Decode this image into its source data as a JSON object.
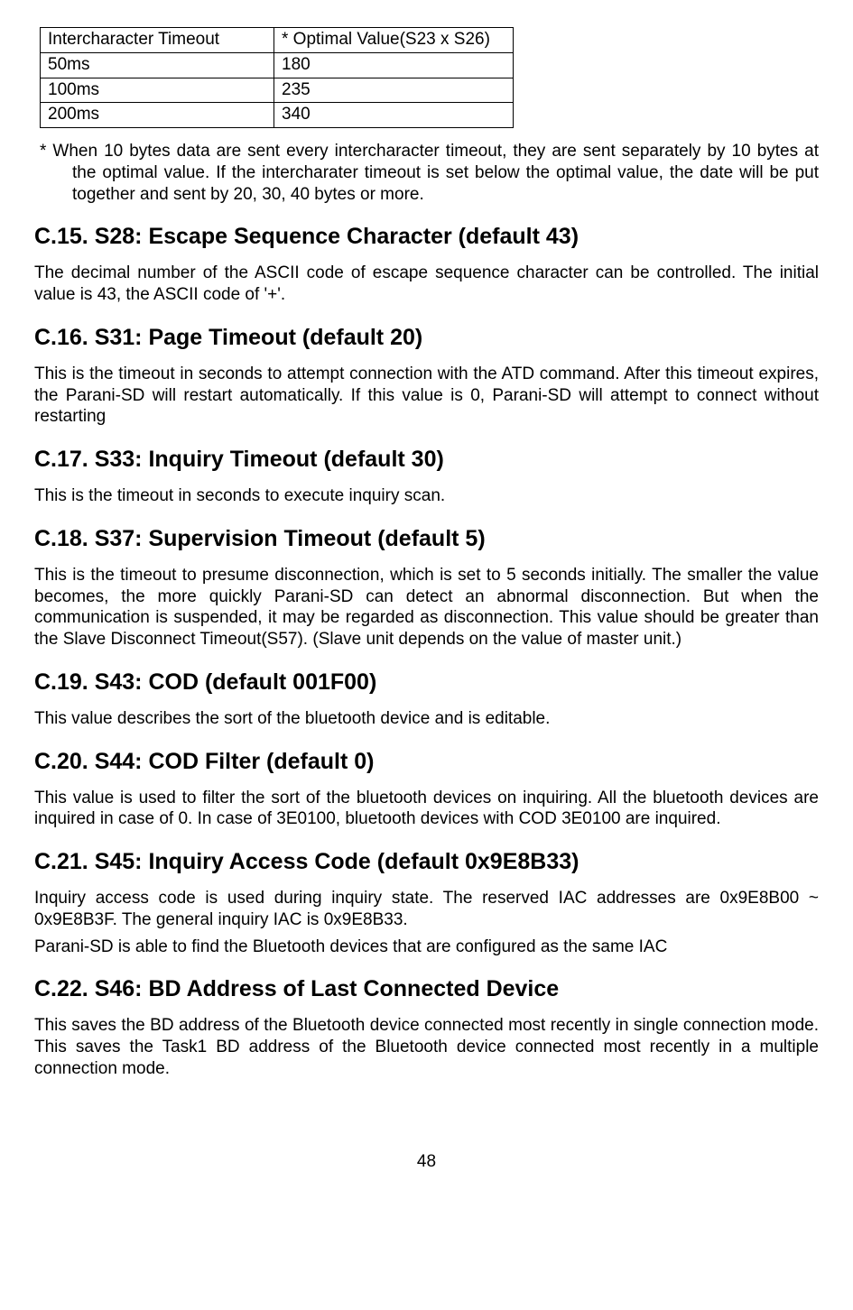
{
  "table": {
    "columns": [
      "Intercharacter Timeout",
      "* Optimal Value(S23 x S26)"
    ],
    "rows": [
      [
        "50ms",
        "180"
      ],
      [
        "100ms",
        "235"
      ],
      [
        "200ms",
        "340"
      ]
    ]
  },
  "note_text": "* When 10 bytes data are sent every intercharacter timeout, they are sent separately by 10 bytes at the optimal value. If the intercharater timeout is set below the optimal value, the date will be put together and sent by 20, 30, 40 bytes or more.",
  "sections": {
    "c15": {
      "title": "C.15. S28: Escape Sequence Character (default 43)",
      "body": "The decimal number of the ASCII code of escape sequence character can be controlled. The initial value is 43, the ASCII code of '+'."
    },
    "c16": {
      "title": "C.16. S31: Page Timeout (default 20)",
      "body": "This is the timeout in seconds to attempt connection with the ATD command. After this timeout expires, the Parani-SD will restart automatically. If this value is 0, Parani-SD will attempt to connect without restarting"
    },
    "c17": {
      "title": "C.17. S33: Inquiry Timeout (default 30)",
      "body": "This is the timeout in seconds to execute inquiry scan."
    },
    "c18": {
      "title": "C.18. S37: Supervision Timeout (default 5)",
      "body": "This is the timeout to presume disconnection, which is set to 5 seconds initially. The smaller the value becomes, the more quickly Parani-SD can detect an abnormal disconnection. But when the communication is suspended, it may be regarded as disconnection. This value should be greater than the Slave Disconnect Timeout(S57). (Slave unit depends on the value of master unit.)"
    },
    "c19": {
      "title": "C.19. S43: COD (default 001F00)",
      "body": "This value describes the sort of the bluetooth device and is editable."
    },
    "c20": {
      "title": "C.20. S44: COD Filter (default 0)",
      "body": "This value is used to filter the sort of the bluetooth devices on inquiring. All the bluetooth devices are inquired in case of 0. In case of 3E0100, bluetooth devices with COD 3E0100 are inquired."
    },
    "c21": {
      "title": "C.21. S45: Inquiry Access Code (default 0x9E8B33)",
      "body1": "Inquiry access code is used during inquiry state. The reserved IAC addresses are 0x9E8B00 ~ 0x9E8B3F. The general inquiry IAC is 0x9E8B33.",
      "body2": "Parani-SD is able to find the Bluetooth devices that are configured as the same IAC"
    },
    "c22": {
      "title": "C.22. S46: BD Address of Last Connected Device",
      "body": "This saves the BD address of the Bluetooth device connected most recently in single connection mode. This saves the Task1 BD address of the Bluetooth device connected most recently in a multiple connection mode."
    }
  },
  "page_number": "48"
}
